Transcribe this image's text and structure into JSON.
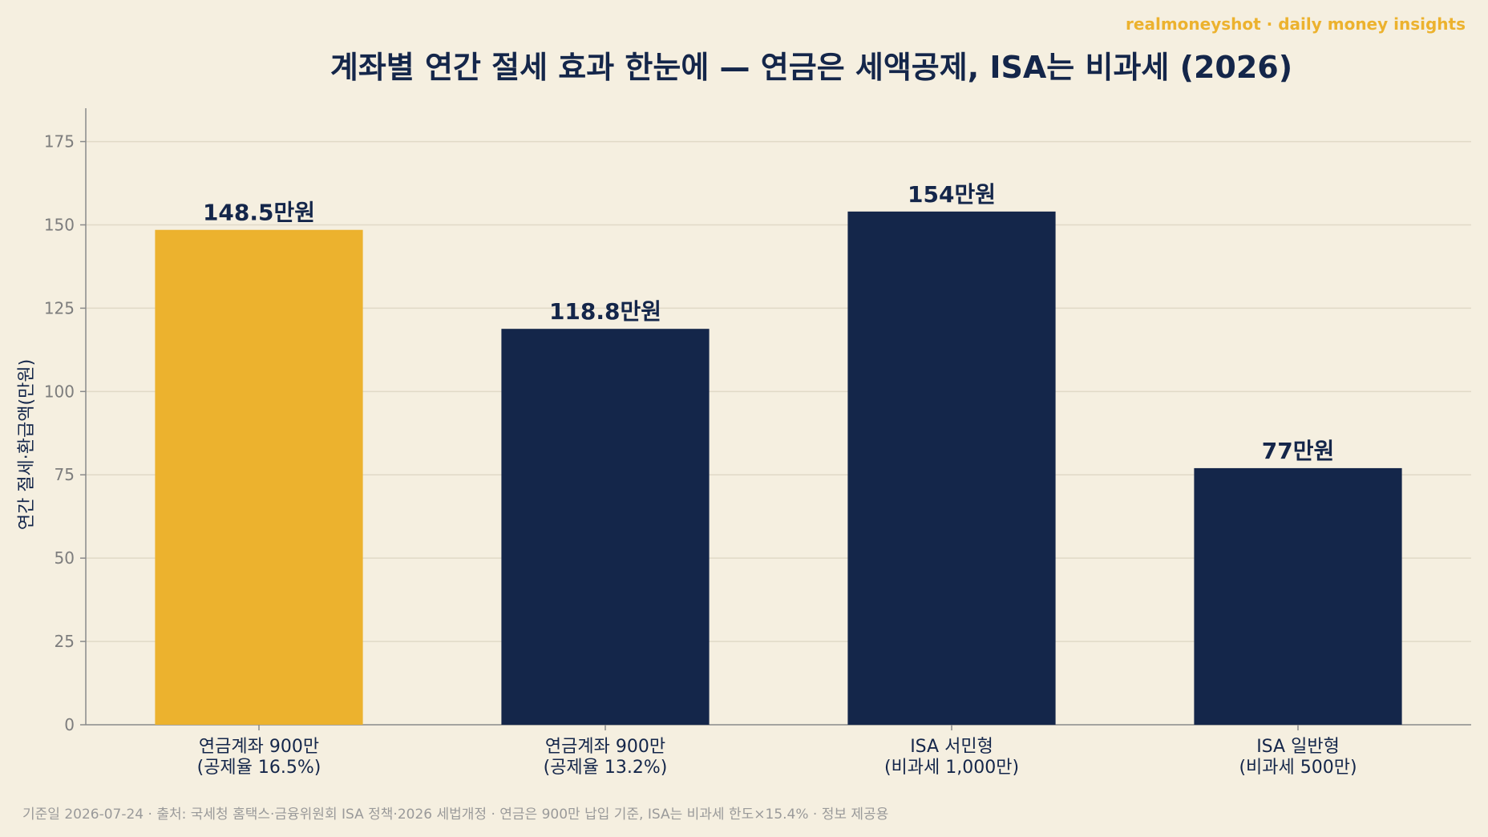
{
  "brand": {
    "text": "realmoneyshot · daily money insights",
    "color": "#ecb22e"
  },
  "footnote": "기준일 2026-07-24 · 출처: 국세청 홈택스·금융위원회 ISA 정책·2026 세법개정 · 연금은 900만 납입 기준, ISA는 비과세 한도×15.4% · 정보 제공용",
  "colors": {
    "background": "#f5efe0",
    "highlight": "#ecb22e",
    "navy": "#14264a",
    "grid": "#e0d9c7",
    "axis": "#8a8a8a",
    "tick_text": "#7d7d7d",
    "footnote": "#9a9a9a"
  },
  "chart_data": {
    "type": "bar",
    "title": "계좌별 연간 절세 효과 한눈에 — 연금은 세액공제, ISA는 비과세 (2026)",
    "xlabel": "",
    "ylabel": "연간 절세·환급액(만원)",
    "ylim": [
      0,
      185
    ],
    "yticks": [
      0,
      25,
      50,
      75,
      100,
      125,
      150,
      175
    ],
    "grid": true,
    "categories": [
      [
        "연금계좌 900만",
        "(공제율 16.5%)"
      ],
      [
        "연금계좌 900만",
        "(공제율 13.2%)"
      ],
      [
        "ISA 서민형",
        "(비과세 1,000만)"
      ],
      [
        "ISA 일반형",
        "(비과세 500만)"
      ]
    ],
    "values": [
      148.5,
      118.8,
      154,
      77
    ],
    "data_labels": [
      "148.5만원",
      "118.8만원",
      "154만원",
      "77만원"
    ],
    "bar_colors": [
      "#ecb22e",
      "#14264a",
      "#14264a",
      "#14264a"
    ]
  }
}
